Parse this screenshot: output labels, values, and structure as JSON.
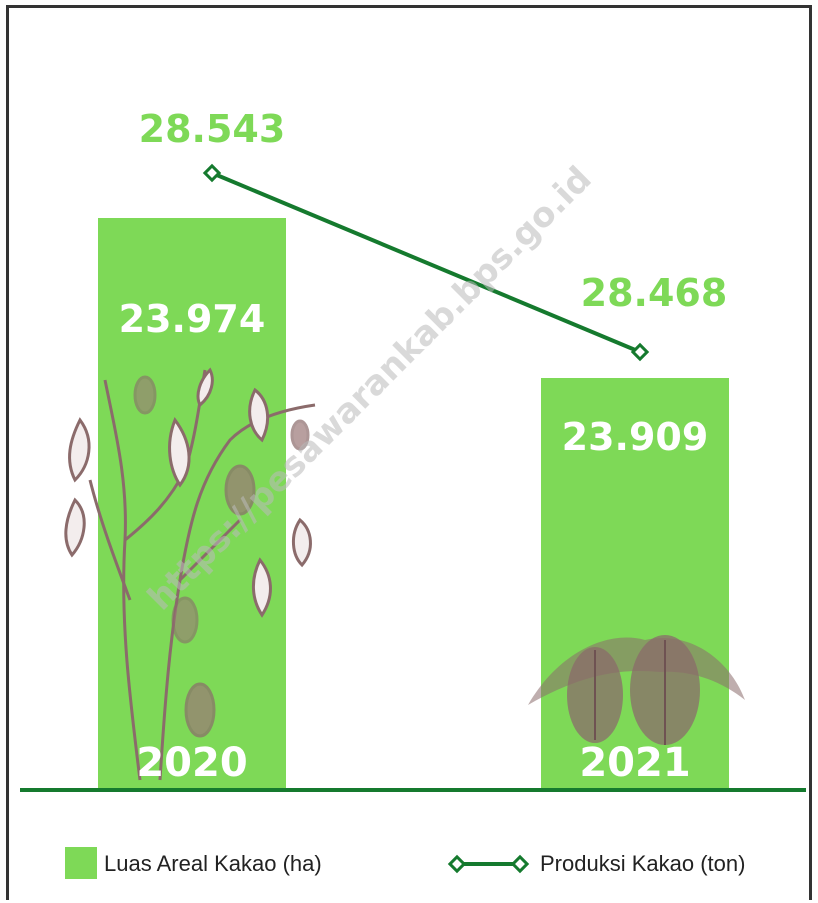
{
  "watermark": "https://pesawarankab.bps.go.id",
  "colors": {
    "bar": "#7ed957",
    "line": "#157a2e",
    "axis": "#157a2e",
    "bar_text": "#ffffff",
    "line_text": "#7ed957",
    "illustration": "#8b6b6b"
  },
  "chart_data": {
    "type": "bar",
    "categories": [
      "2020",
      "2021"
    ],
    "series": [
      {
        "name": "Luas Areal Kakao (ha)",
        "kind": "bar",
        "values": [
          23974,
          23909
        ],
        "labels": [
          "23.974",
          "23.909"
        ]
      },
      {
        "name": "Produksi Kakao (ton)",
        "kind": "line",
        "values": [
          28543,
          28468
        ],
        "labels": [
          "28.543",
          "28.468"
        ]
      }
    ],
    "legend": [
      {
        "label": "Luas Areal Kakao (ha)",
        "marker": "square"
      },
      {
        "label": "Produksi Kakao (ton)",
        "marker": "line-diamond"
      }
    ],
    "legend_position": "bottom",
    "grid": false
  }
}
